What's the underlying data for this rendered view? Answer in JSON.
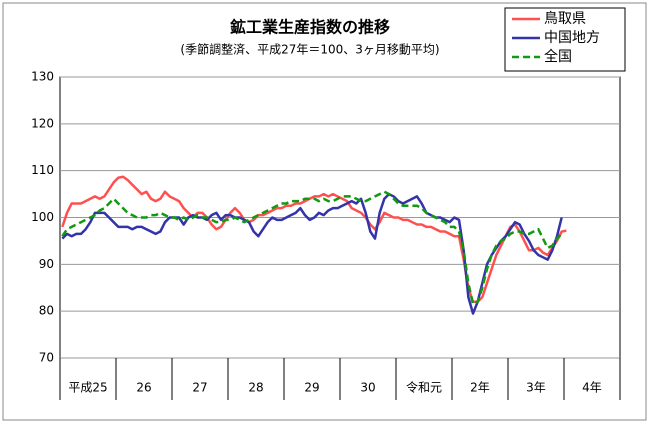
{
  "chart_data": {
    "type": "line",
    "title": "鉱工業生産指数の推移",
    "subtitle": "(季節調整済、平成27年＝100、3ヶ月移動平均)",
    "categories": [
      "平成25",
      null,
      null,
      null,
      null,
      null,
      null,
      null,
      null,
      null,
      null,
      null,
      "26",
      null,
      null,
      null,
      null,
      null,
      null,
      null,
      null,
      null,
      null,
      null,
      "27",
      null,
      null,
      null,
      null,
      null,
      null,
      null,
      null,
      null,
      null,
      null,
      "28",
      null,
      null,
      null,
      null,
      null,
      null,
      null,
      null,
      null,
      null,
      null,
      "29",
      null,
      null,
      null,
      null,
      null,
      null,
      null,
      null,
      null,
      null,
      null,
      "30",
      null,
      null,
      null,
      null,
      null,
      null,
      null,
      null,
      null,
      null,
      null,
      "令和元",
      null,
      null,
      null,
      null,
      null,
      null,
      null,
      null,
      null,
      null,
      null,
      "2年",
      null,
      null,
      null,
      null,
      null,
      null,
      null,
      null,
      null,
      null,
      null,
      "3年",
      null,
      null,
      null,
      null,
      null,
      null,
      null,
      null,
      null,
      null,
      null,
      "4年",
      null,
      null,
      null,
      null,
      null,
      null,
      null,
      null,
      null,
      null,
      null
    ],
    "series": [
      {
        "name": "鳥取県",
        "color": "#ff5050",
        "values": [
          98,
          101,
          103,
          103,
          103,
          103.5,
          104,
          104.5,
          104,
          104.5,
          106,
          107.5,
          108.5,
          108.7,
          108,
          107,
          106,
          105,
          105.5,
          104,
          103.5,
          104,
          105.5,
          104.5,
          104,
          103.5,
          102,
          101,
          100,
          101,
          101,
          100,
          98.5,
          97.5,
          98,
          99.5,
          101,
          102,
          101,
          99.5,
          99,
          99.5,
          100.5,
          100.5,
          101,
          101.5,
          102,
          102,
          102.5,
          102.5,
          103,
          103,
          103.5,
          104,
          104.5,
          104.5,
          105,
          104.5,
          105,
          104.5,
          104,
          103.5,
          102,
          101.5,
          101,
          100,
          98.5,
          97.5,
          99,
          101,
          100.5,
          100,
          100,
          99.5,
          99.5,
          99,
          98.5,
          98.5,
          98,
          98,
          97.5,
          97,
          97,
          96.5,
          96,
          96,
          91,
          85,
          82,
          82,
          83,
          86,
          89,
          92,
          94,
          96,
          98,
          98.5,
          97,
          95,
          93,
          93,
          93.5,
          92.5,
          92,
          93.5,
          95,
          97,
          97.2,
          null,
          null,
          null,
          null,
          null,
          null,
          null,
          null,
          null,
          null,
          null
        ]
      },
      {
        "name": "中国地方",
        "color": "#3333aa",
        "values": [
          95.5,
          96.5,
          96,
          96.5,
          96.5,
          97.5,
          99,
          101,
          101,
          101,
          100,
          99,
          98,
          98,
          98,
          97.5,
          98,
          98,
          97.5,
          97,
          96.5,
          97,
          99,
          100,
          100,
          100,
          98.5,
          100,
          100.5,
          100,
          100,
          99.5,
          100.5,
          101,
          99.5,
          100.5,
          100.5,
          100,
          100,
          99.5,
          99,
          97,
          96,
          97.5,
          99,
          100,
          99.5,
          99.5,
          100,
          100.5,
          101,
          102,
          100.5,
          99.5,
          100,
          101,
          100.5,
          101.5,
          102,
          102,
          102.5,
          103,
          103.5,
          103,
          104,
          101,
          97,
          95.5,
          101,
          104,
          105,
          104.5,
          103.5,
          103,
          103.5,
          104,
          104.5,
          103,
          101,
          100.5,
          100,
          100,
          99.5,
          99,
          100,
          99.5,
          93,
          83,
          79.5,
          82,
          86,
          90,
          92,
          93.5,
          95,
          96,
          97.5,
          99,
          98.5,
          96.5,
          95,
          93,
          92,
          91.5,
          91,
          93,
          96,
          100,
          null,
          null,
          null,
          null,
          null,
          null,
          null,
          null,
          null,
          null,
          null,
          null
        ]
      },
      {
        "name": "全国",
        "color": "#119911",
        "dash": true,
        "values": [
          96,
          97.5,
          98,
          98.5,
          99,
          99.5,
          100,
          100.5,
          101.5,
          102,
          103,
          104,
          103,
          102,
          101,
          100.5,
          100,
          100,
          100,
          100.5,
          100.5,
          101,
          100.5,
          100,
          100,
          99.5,
          100,
          99.5,
          100,
          100.5,
          100,
          100,
          99.5,
          99,
          99,
          99.5,
          99.5,
          100,
          99.5,
          99,
          99.5,
          100,
          100.5,
          101,
          101.5,
          102,
          102.5,
          103,
          103,
          103.5,
          103.5,
          103.5,
          104,
          104,
          104,
          103.5,
          104,
          103.5,
          103.5,
          104,
          104.5,
          104.5,
          104.5,
          104,
          103.5,
          103.5,
          104,
          104.5,
          105,
          105.5,
          105,
          104,
          103,
          102.5,
          102.5,
          102.5,
          102.5,
          102,
          101,
          100.5,
          100,
          99.5,
          99,
          98,
          98,
          97,
          93,
          86,
          81.5,
          82,
          85,
          89,
          92,
          94,
          95,
          95.5,
          96.5,
          97,
          97,
          96.5,
          96.5,
          97,
          97.5,
          95.5,
          93.5,
          94,
          95.5,
          96.5,
          null,
          null,
          null,
          null,
          null,
          null,
          null,
          null,
          null,
          null,
          null,
          null
        ]
      }
    ],
    "ylim": [
      70,
      130
    ],
    "yticks": [
      70,
      80,
      90,
      100,
      110,
      120,
      130
    ],
    "grid": true
  }
}
